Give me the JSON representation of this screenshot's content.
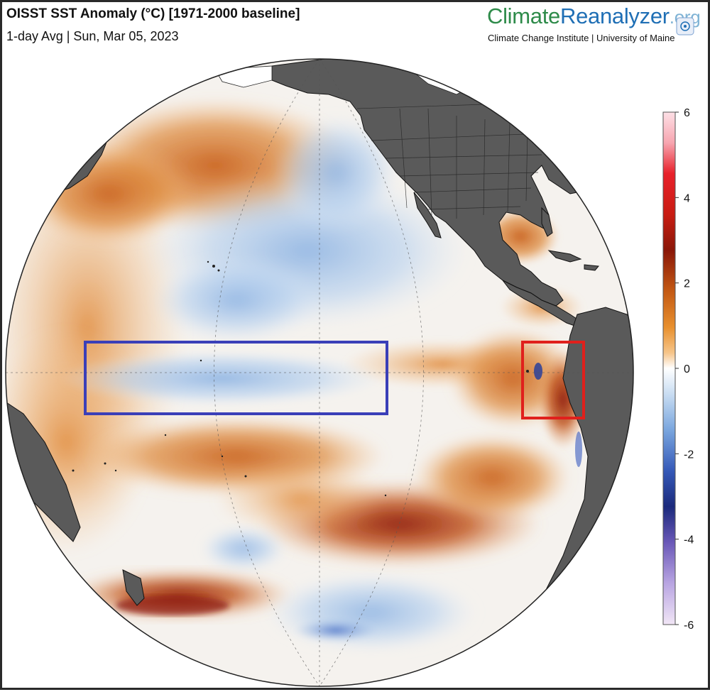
{
  "header": {
    "title": "OISST SST Anomaly (°C) [1971-2000 baseline]",
    "subtitle": "1-day Avg | Sun, Mar 05, 2023"
  },
  "brand": {
    "name_part1": "Climate",
    "name_part2": "Reanalyzer",
    "name_part3": ".org",
    "institute": "Climate Change Institute | University of Maine"
  },
  "colorbar": {
    "ticks": [
      "6",
      "4",
      "2",
      "0",
      "-2",
      "-4",
      "-6"
    ],
    "min": -6,
    "max": 6
  },
  "colors": {
    "land": "#5a5a5a",
    "ice": "#ffffff",
    "warm_strong": "#9b1c0c",
    "warm": "#d9782a",
    "warm_light": "#f2b679",
    "neutral": "#f7f7f5",
    "cool_light": "#bcd5ef",
    "cool": "#7fa8dc",
    "nino_region_box": "#3a3fb8",
    "coastal_box": "#e0201c"
  },
  "annotations": {
    "blue_box": "central-equatorial-pacific-region",
    "red_box": "coastal-peru-region"
  }
}
